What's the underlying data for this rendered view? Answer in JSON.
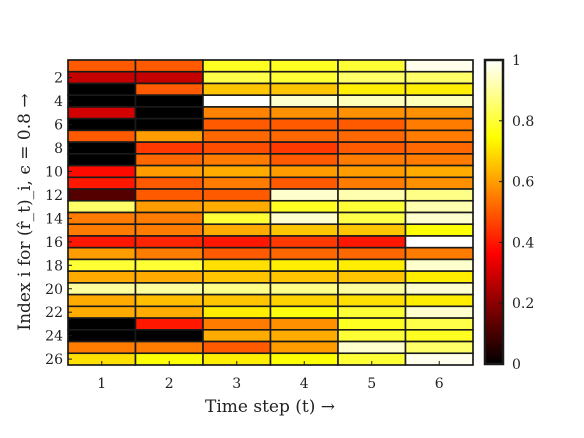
{
  "chart_data": {
    "type": "heatmap",
    "title": "",
    "xlabel": "Time step (t) →",
    "ylabel": "Index i for (r̂_t)_i, ϵ = 0.8 →",
    "x": [
      "1",
      "2",
      "3",
      "4",
      "5",
      "6"
    ],
    "y_tick_labels": [
      "2",
      "4",
      "6",
      "8",
      "10",
      "12",
      "14",
      "16",
      "18",
      "20",
      "22",
      "24",
      "26"
    ],
    "rows": 26,
    "colorbar": {
      "min": 0,
      "max": 1,
      "ticks": [
        "0",
        "0.2",
        "0.4",
        "0.6",
        "0.8",
        "1"
      ],
      "colormap": "hot",
      "placement": "right"
    },
    "values": [
      [
        0.5,
        0.5,
        0.78,
        0.78,
        0.8,
        0.98
      ],
      [
        0.28,
        0.28,
        0.82,
        0.8,
        0.85,
        0.85
      ],
      [
        0.0,
        0.5,
        0.66,
        0.66,
        0.72,
        0.72
      ],
      [
        0.0,
        0.0,
        1.0,
        0.95,
        0.93,
        0.93
      ],
      [
        0.3,
        0.0,
        0.56,
        0.58,
        0.58,
        0.58
      ],
      [
        0.0,
        0.0,
        0.5,
        0.5,
        0.5,
        0.55
      ],
      [
        0.5,
        0.6,
        0.52,
        0.52,
        0.52,
        0.55
      ],
      [
        0.0,
        0.45,
        0.48,
        0.45,
        0.5,
        0.52
      ],
      [
        0.0,
        0.52,
        0.55,
        0.5,
        0.55,
        0.55
      ],
      [
        0.38,
        0.6,
        0.62,
        0.6,
        0.6,
        0.62
      ],
      [
        0.4,
        0.5,
        0.55,
        0.5,
        0.55,
        0.58
      ],
      [
        0.12,
        0.5,
        0.5,
        0.95,
        0.92,
        0.88
      ],
      [
        0.85,
        0.6,
        0.62,
        0.78,
        0.8,
        0.92
      ],
      [
        0.55,
        0.55,
        0.8,
        0.95,
        0.82,
        0.95
      ],
      [
        0.55,
        0.55,
        0.62,
        0.66,
        0.66,
        0.75
      ],
      [
        0.4,
        0.42,
        0.4,
        0.45,
        0.4,
        1.0
      ],
      [
        0.6,
        0.55,
        0.5,
        0.52,
        0.52,
        0.55
      ],
      [
        0.8,
        0.8,
        0.7,
        0.72,
        0.72,
        0.95
      ],
      [
        0.62,
        0.62,
        0.66,
        0.66,
        0.66,
        0.72
      ],
      [
        0.9,
        0.9,
        0.88,
        0.88,
        0.9,
        0.95
      ],
      [
        0.62,
        0.65,
        0.66,
        0.68,
        0.7,
        0.72
      ],
      [
        0.62,
        0.62,
        0.72,
        0.76,
        0.8,
        0.95
      ],
      [
        0.0,
        0.4,
        0.55,
        0.58,
        0.78,
        0.82
      ],
      [
        0.0,
        0.0,
        0.62,
        0.62,
        0.8,
        0.78
      ],
      [
        0.55,
        0.55,
        0.5,
        0.6,
        0.95,
        0.85
      ],
      [
        0.7,
        0.75,
        0.72,
        0.75,
        0.8,
        0.98
      ]
    ]
  }
}
